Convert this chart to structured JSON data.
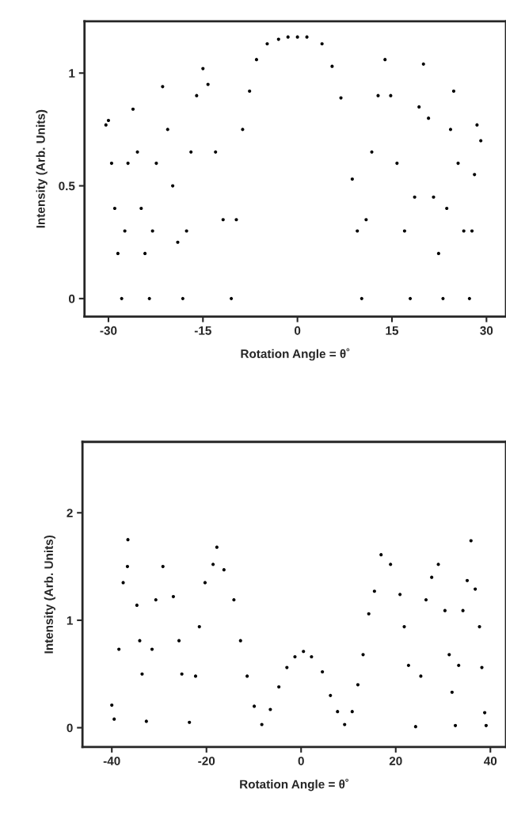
{
  "chart_data": [
    {
      "type": "scatter",
      "xlabel": "Rotation Angle = θ˚",
      "ylabel": "Intensity (Arb. Units)",
      "marker": "circle",
      "grid": false,
      "legend": false,
      "xlim": [
        -33.8,
        33.1
      ],
      "ylim": [
        -0.08,
        1.23
      ],
      "xticks": [
        -30,
        -15,
        0,
        15,
        30
      ],
      "yticks": [
        0,
        0.5,
        1
      ],
      "series": [
        {
          "color": "#000000",
          "x": [
            -30.4,
            -30.0,
            -29.5,
            -29.0,
            -28.5,
            -27.9,
            -27.4,
            -26.9,
            -26.1,
            -25.4,
            -24.8,
            -24.2,
            -23.5,
            -23.0,
            -22.4,
            -21.4,
            -20.6,
            -19.8,
            -19.0,
            -18.2,
            -17.6,
            -16.9,
            -16.0,
            -15.0,
            -14.2,
            -13.0,
            -11.8,
            -10.5,
            -9.7,
            -8.7,
            -7.6,
            -6.5,
            -4.8,
            -3.0,
            -1.5,
            0.0,
            1.5,
            3.9,
            5.5,
            6.9,
            8.7,
            9.5,
            10.2,
            10.9,
            11.8,
            12.8,
            13.9,
            14.8,
            15.8,
            17.0,
            17.9,
            18.6,
            19.3,
            20.0,
            20.8,
            21.6,
            22.4,
            23.1,
            23.7,
            24.3,
            24.8,
            25.5,
            26.4,
            27.3,
            27.7,
            28.1,
            28.5,
            29.1
          ],
          "values": [
            0.77,
            0.79,
            0.6,
            0.4,
            0.2,
            0.0,
            0.3,
            0.6,
            0.84,
            0.65,
            0.4,
            0.2,
            0.0,
            0.3,
            0.6,
            0.94,
            0.75,
            0.5,
            0.25,
            0.0,
            0.3,
            0.65,
            0.9,
            1.02,
            0.95,
            0.65,
            0.35,
            0.0,
            0.35,
            0.75,
            0.92,
            1.06,
            1.13,
            1.15,
            1.16,
            1.16,
            1.16,
            1.13,
            1.03,
            0.89,
            0.53,
            0.3,
            0.0,
            0.35,
            0.65,
            0.9,
            1.06,
            0.9,
            0.6,
            0.3,
            0.0,
            0.45,
            0.85,
            1.04,
            0.8,
            0.45,
            0.2,
            0.0,
            0.4,
            0.75,
            0.92,
            0.6,
            0.3,
            0.0,
            0.3,
            0.55,
            0.77,
            0.7
          ]
        }
      ]
    },
    {
      "type": "scatter",
      "xlabel": "Rotation Angle = θ˚",
      "ylabel": "Intensity (Arb. Units)",
      "marker": "circle",
      "grid": false,
      "legend": false,
      "xlim": [
        -46.2,
        43.3
      ],
      "ylim": [
        -0.18,
        2.66
      ],
      "xticks": [
        -40,
        -20,
        0,
        20,
        40
      ],
      "yticks": [
        0,
        1,
        2
      ],
      "series": [
        {
          "color": "#000000",
          "x": [
            -40.0,
            -39.5,
            -38.5,
            -37.6,
            -36.7,
            -36.6,
            -34.7,
            -34.1,
            -33.6,
            -32.7,
            -31.5,
            -30.7,
            -29.2,
            -27.0,
            -25.8,
            -25.2,
            -23.6,
            -22.3,
            -21.5,
            -20.3,
            -18.6,
            -17.8,
            -16.3,
            -14.2,
            -12.8,
            -11.4,
            -9.9,
            -8.3,
            -6.5,
            -4.7,
            -3.0,
            -1.3,
            0.5,
            2.2,
            4.5,
            6.2,
            7.7,
            9.2,
            10.8,
            12.0,
            13.1,
            14.3,
            15.5,
            16.9,
            18.9,
            20.9,
            21.8,
            22.7,
            24.2,
            25.3,
            26.4,
            27.6,
            29.0,
            30.4,
            31.3,
            31.9,
            32.6,
            33.3,
            34.2,
            35.1,
            35.9,
            36.8,
            37.7,
            38.2,
            38.8,
            39.1
          ],
          "values": [
            0.21,
            0.08,
            0.73,
            1.35,
            1.5,
            1.75,
            1.14,
            0.81,
            0.5,
            0.06,
            0.73,
            1.19,
            1.5,
            1.22,
            0.81,
            0.5,
            0.05,
            0.48,
            0.94,
            1.35,
            1.52,
            1.68,
            1.47,
            1.19,
            0.81,
            0.48,
            0.2,
            0.03,
            0.17,
            0.38,
            0.56,
            0.66,
            0.71,
            0.66,
            0.52,
            0.3,
            0.15,
            0.03,
            0.15,
            0.4,
            0.68,
            1.06,
            1.27,
            1.61,
            1.52,
            1.24,
            0.94,
            0.58,
            0.01,
            0.48,
            1.19,
            1.4,
            1.52,
            1.09,
            0.68,
            0.33,
            0.02,
            0.58,
            1.09,
            1.37,
            1.74,
            1.29,
            0.94,
            0.56,
            0.14,
            0.02
          ]
        }
      ]
    }
  ]
}
